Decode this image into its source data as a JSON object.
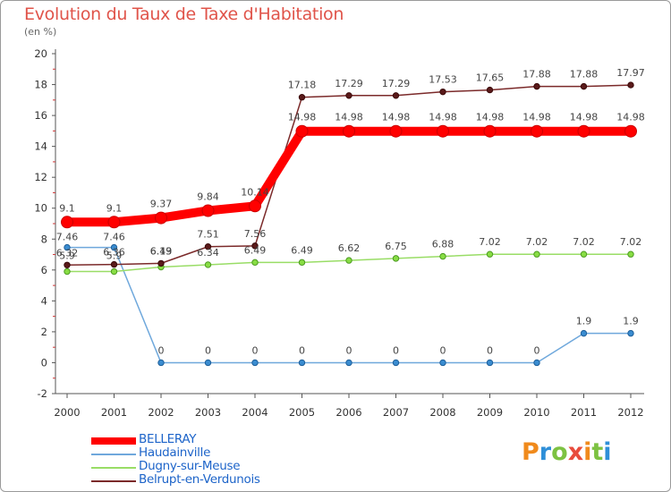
{
  "title": "Evolution du Taux de Taxe d'Habitation",
  "subtitle": "(en %)",
  "logo": {
    "letters": [
      "P",
      "r",
      "o",
      "x",
      "i",
      "t",
      "i"
    ],
    "colors": [
      "#f08a1c",
      "#2e8fd8",
      "#7dc242",
      "#e84c3d",
      "#f08a1c",
      "#7dc242",
      "#2e8fd8"
    ]
  },
  "chart_data": {
    "type": "line",
    "title": "Evolution du Taux de Taxe d'Habitation",
    "ylabel": "(en %)",
    "x": [
      "2000",
      "2001",
      "2002",
      "2003",
      "2004",
      "2005",
      "2006",
      "2007",
      "2008",
      "2009",
      "2010",
      "2011",
      "2012"
    ],
    "ylim": [
      -2,
      20
    ],
    "yticks": [
      -2,
      0,
      2,
      4,
      6,
      8,
      10,
      12,
      14,
      16,
      18,
      20
    ],
    "grid": false,
    "legend_position": "bottom-left",
    "series": [
      {
        "name": "BELLERAY",
        "color": "#ff0000",
        "values": [
          9.1,
          9.1,
          9.37,
          9.84,
          10.14,
          14.98,
          14.98,
          14.98,
          14.98,
          14.98,
          14.98,
          14.98,
          14.98
        ],
        "labels": [
          "9.1",
          "9.1",
          "9.37",
          "9.84",
          "10.14",
          "14.98",
          "14.98",
          "14.98",
          "14.98",
          "14.98",
          "14.98",
          "14.98",
          "14.98"
        ]
      },
      {
        "name": "Haudainville",
        "color": "#6fa8dc",
        "values": [
          7.46,
          7.46,
          0,
          0,
          0,
          0,
          0,
          0,
          0,
          0,
          0,
          1.9,
          1.9
        ],
        "labels": [
          "7.46",
          "7.46",
          "0",
          "0",
          "0",
          "0",
          "0",
          "0",
          "0",
          "0",
          "0",
          "1.9",
          "1.9"
        ]
      },
      {
        "name": "Dugny-sur-Meuse",
        "color": "#99dd66",
        "values": [
          5.9,
          5.9,
          6.19,
          6.34,
          6.49,
          6.49,
          6.62,
          6.75,
          6.88,
          7.02,
          7.02,
          7.02,
          7.02
        ],
        "labels": [
          "5.9",
          "5.9",
          "6.19",
          "6.34",
          "6.49",
          "6.49",
          "6.62",
          "6.75",
          "6.88",
          "7.02",
          "7.02",
          "7.02",
          "7.02"
        ]
      },
      {
        "name": "Belrupt-en-Verdunois",
        "color": "#7b2a2a",
        "values": [
          6.32,
          6.36,
          6.43,
          7.51,
          7.56,
          17.18,
          17.29,
          17.29,
          17.53,
          17.65,
          17.88,
          17.88,
          17.97
        ],
        "labels": [
          "6.32",
          "6.36",
          "6.43",
          "7.51",
          "7.56",
          "17.18",
          "17.29",
          "17.29",
          "17.53",
          "17.65",
          "17.88",
          "17.88",
          "17.97"
        ]
      }
    ]
  }
}
